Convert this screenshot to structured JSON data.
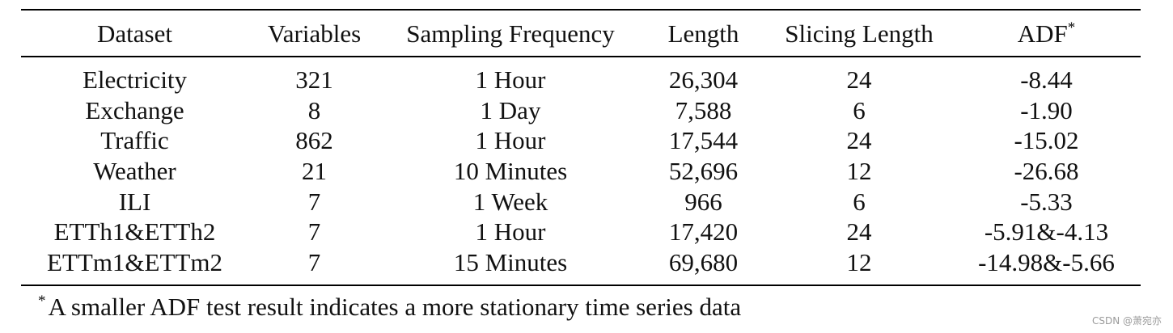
{
  "table": {
    "columns": [
      "Dataset",
      "Variables",
      "Sampling Frequency",
      "Length",
      "Slicing Length",
      "ADF"
    ],
    "adf_marker": "*",
    "rows": [
      [
        "Electricity",
        "321",
        "1 Hour",
        "26,304",
        "24",
        "-8.44"
      ],
      [
        "Exchange",
        "8",
        "1 Day",
        "7,588",
        "6",
        "-1.90"
      ],
      [
        "Traffic",
        "862",
        "1 Hour",
        "17,544",
        "24",
        "-15.02"
      ],
      [
        "Weather",
        "21",
        "10 Minutes",
        "52,696",
        "12",
        "-26.68"
      ],
      [
        "ILI",
        "7",
        "1 Week",
        "966",
        "6",
        "-5.33"
      ],
      [
        "ETTh1&ETTh2",
        "7",
        "1 Hour",
        "17,420",
        "24",
        "-5.91&-4.13"
      ],
      [
        "ETTm1&ETTm2",
        "7",
        "15 Minutes",
        "69,680",
        "12",
        "-14.98&-5.66"
      ]
    ]
  },
  "footnote": {
    "marker": "*",
    "text": "A smaller ADF test result indicates a more stationary time series data"
  },
  "watermark": "CSDN @萧宛亦"
}
